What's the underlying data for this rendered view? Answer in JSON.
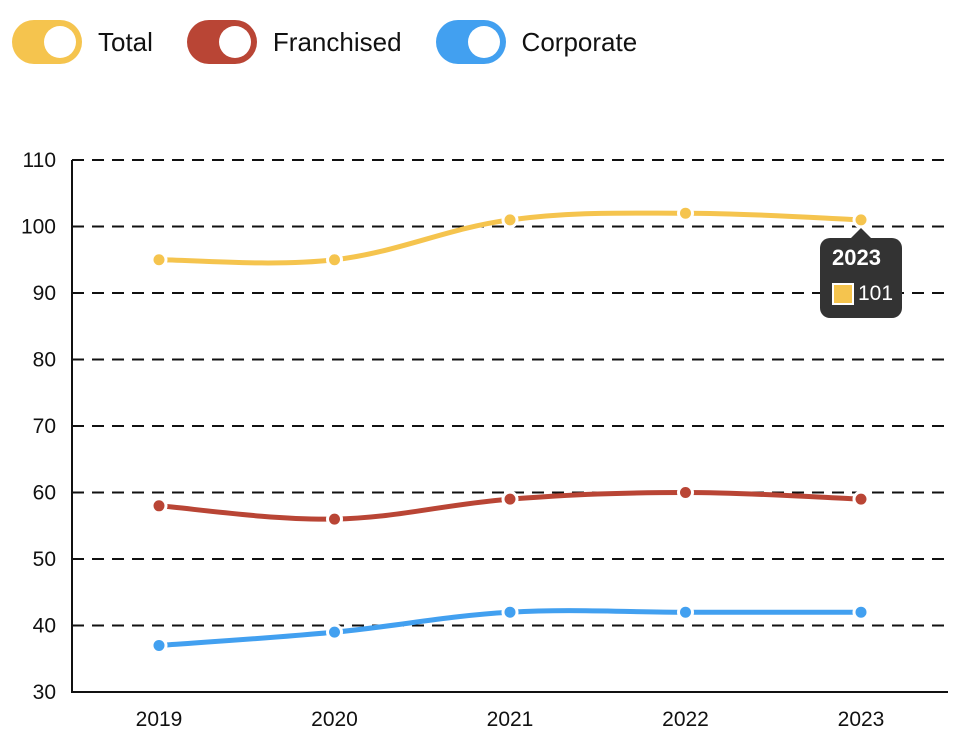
{
  "chart_data": {
    "type": "line",
    "categories": [
      "2019",
      "2020",
      "2021",
      "2022",
      "2023"
    ],
    "series": [
      {
        "name": "Total",
        "color": "#f5c44e",
        "values": [
          95,
          95,
          101,
          102,
          101
        ]
      },
      {
        "name": "Franchised",
        "color": "#b94535",
        "values": [
          58,
          56,
          59,
          60,
          59
        ]
      },
      {
        "name": "Corporate",
        "color": "#42a0f0",
        "values": [
          37,
          39,
          42,
          42,
          42
        ]
      }
    ],
    "ylim": [
      30,
      110
    ],
    "yticks": [
      30,
      40,
      50,
      60,
      70,
      80,
      90,
      100,
      110
    ],
    "grid": true,
    "grid_style": "dashed",
    "legend_position": "top-left",
    "tooltip": {
      "title": "2023",
      "series": "Total",
      "value": "101",
      "color": "#f5c44e"
    }
  }
}
